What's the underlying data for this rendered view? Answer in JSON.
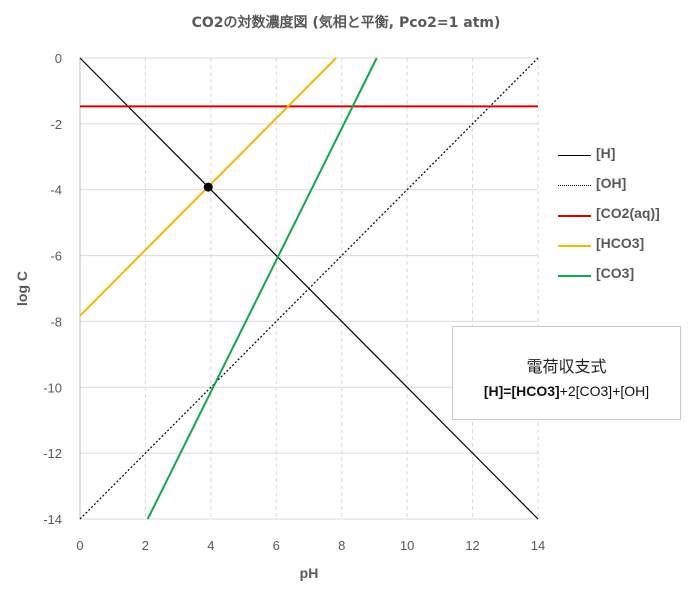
{
  "chart_data": {
    "type": "line",
    "title": "CO2の対数濃度図 (気相と平衡, Pco2=1 atm)",
    "xlabel": "pH",
    "ylabel": "log C",
    "xlim": [
      0,
      14
    ],
    "ylim": [
      -14,
      0
    ],
    "xticks": [
      0,
      2,
      4,
      6,
      8,
      10,
      12,
      14
    ],
    "yticks": [
      0,
      -2,
      -4,
      -6,
      -8,
      -10,
      -12,
      -14
    ],
    "grid": true,
    "legend_position": "right",
    "series": [
      {
        "name": "[H]",
        "color": "#000000",
        "style": "solid",
        "x": [
          0,
          14
        ],
        "y": [
          0,
          -14
        ]
      },
      {
        "name": "[OH]",
        "color": "#000000",
        "style": "dotted",
        "x": [
          0,
          14
        ],
        "y": [
          -14,
          0
        ]
      },
      {
        "name": "[CO2(aq)]",
        "color": "#e00000",
        "style": "solid",
        "x": [
          0,
          14
        ],
        "y": [
          -1.47,
          -1.47
        ]
      },
      {
        "name": "[HCO3]",
        "color": "#f5b800",
        "style": "solid",
        "x": [
          0,
          7.83
        ],
        "y": [
          -7.83,
          0
        ]
      },
      {
        "name": "[CO3]",
        "color": "#10a84a",
        "style": "solid",
        "x": [
          2.07,
          9.07
        ],
        "y": [
          -14,
          0
        ]
      }
    ],
    "markers": [
      {
        "x": 3.92,
        "y": -3.92,
        "color": "#000000"
      }
    ]
  },
  "annotation": {
    "title": "電荷収支式",
    "eq_bold": "[H]=[HCO3]",
    "eq_rest": "+2[CO3]+[OH]"
  }
}
